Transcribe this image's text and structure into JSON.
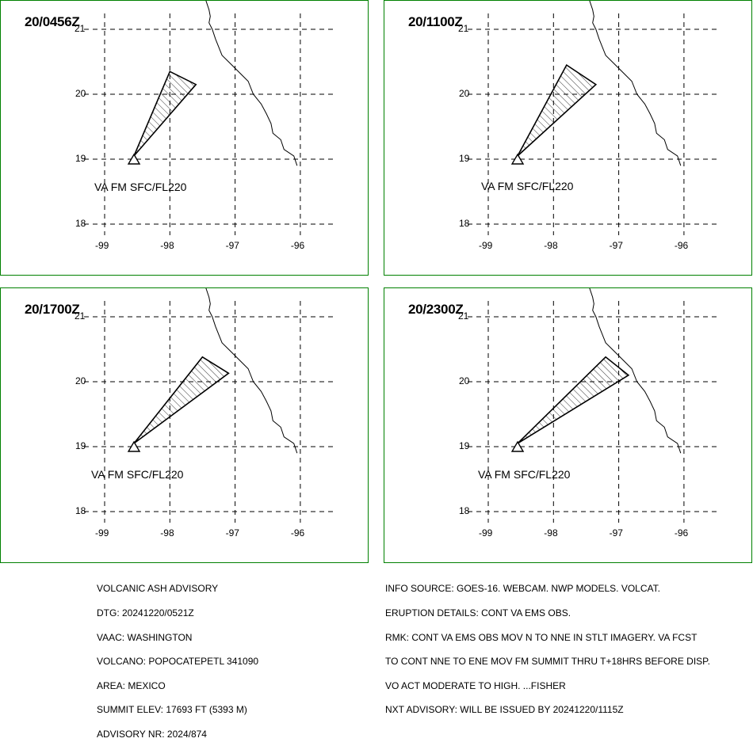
{
  "panels": [
    {
      "id": "p1",
      "time": "20/0456Z",
      "va_label": "VA FM SFC/FL220",
      "ash_polygon": [
        [
          -98.55,
          19.05
        ],
        [
          -98.0,
          20.35
        ],
        [
          -97.6,
          20.15
        ]
      ]
    },
    {
      "id": "p2",
      "time": "20/1100Z",
      "va_label": "VA FM SFC/FL220",
      "ash_polygon": [
        [
          -98.55,
          19.05
        ],
        [
          -97.8,
          20.45
        ],
        [
          -97.35,
          20.15
        ]
      ]
    },
    {
      "id": "p3",
      "time": "20/1700Z",
      "va_label": "VA FM SFC/FL220",
      "ash_polygon": [
        [
          -98.55,
          19.05
        ],
        [
          -97.5,
          20.38
        ],
        [
          -97.1,
          20.13
        ]
      ]
    },
    {
      "id": "p4",
      "time": "20/2300Z",
      "va_label": "VA FM SFC/FL220",
      "ash_polygon": [
        [
          -98.55,
          19.05
        ],
        [
          -97.2,
          20.38
        ],
        [
          -96.85,
          20.1
        ]
      ]
    }
  ],
  "lat_ticks": [
    "21",
    "20",
    "19",
    "18"
  ],
  "lon_ticks": [
    "-99",
    "-98",
    "-97",
    "-96"
  ],
  "volcano_location": [
    -98.55,
    19.0
  ],
  "advisory_left": [
    "VOLCANIC ASH ADVISORY",
    "DTG: 20241220/0521Z",
    "VAAC: WASHINGTON",
    "VOLCANO: POPOCATEPETL 341090",
    "AREA: MEXICO",
    "SUMMIT ELEV: 17693 FT (5393 M)",
    "ADVISORY NR: 2024/874"
  ],
  "advisory_right": [
    "INFO SOURCE: GOES-16. WEBCAM. NWP MODELS. VOLCAT.",
    "ERUPTION DETAILS: CONT VA EMS OBS.",
    "RMK: CONT VA EMS OBS MOV N TO NNE IN STLT IMAGERY. VA FCST",
    "TO CONT NNE TO ENE MOV FM SUMMIT THRU T+18HRS BEFORE DISP.",
    "VO ACT MODERATE TO HIGH. ...FISHER",
    "NXT ADVISORY: WILL BE ISSUED BY 20241220/1115Z"
  ],
  "colors": {
    "border": "#008000",
    "ash": "#000000"
  }
}
